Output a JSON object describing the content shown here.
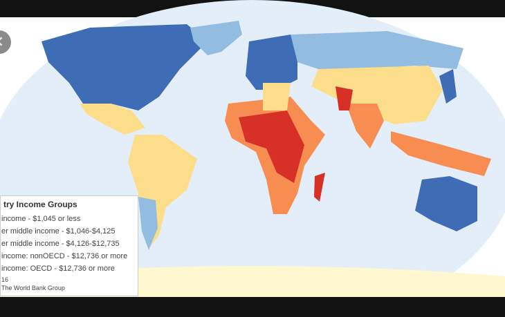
{
  "legend": {
    "title": "try Income Groups",
    "items": [
      "income - $1,045 or less",
      "er middle income - $1,046-$4,125",
      "er middle income - $4,126-$12,735",
      "income: nonOECD - $12,736 or more",
      "income: OECD - $12,736 or more"
    ],
    "year": "16",
    "source": "The World Bank Group"
  }
}
